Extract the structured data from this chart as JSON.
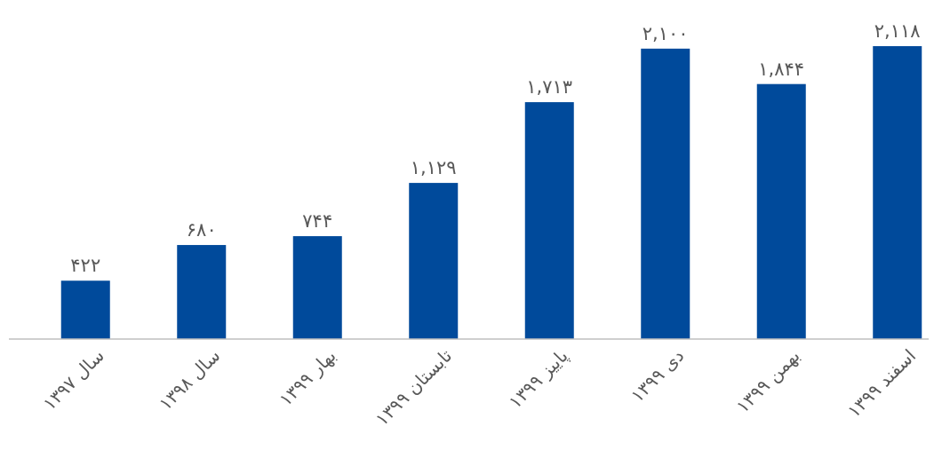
{
  "chart_data": {
    "type": "bar",
    "categories": [
      "سال ۱۳۹۷",
      "سال ۱۳۹۸",
      "بهار ۱۳۹۹",
      "تابستان ۱۳۹۹",
      "پاییز ۱۳۹۹",
      "دی ۱۳۹۹",
      "بهمن ۱۳۹۹",
      "اسفند ۱۳۹۹"
    ],
    "values": [
      422,
      680,
      744,
      1129,
      1713,
      2100,
      1844,
      2118
    ],
    "value_labels": [
      "۴۲۲",
      "۶۸۰",
      "۷۴۴",
      "۱,۱۲۹",
      "۱,۷۱۳",
      "۲,۱۰۰",
      "۱,۸۴۴",
      "۲,۱۱۸"
    ],
    "color": "#004a9b"
  }
}
